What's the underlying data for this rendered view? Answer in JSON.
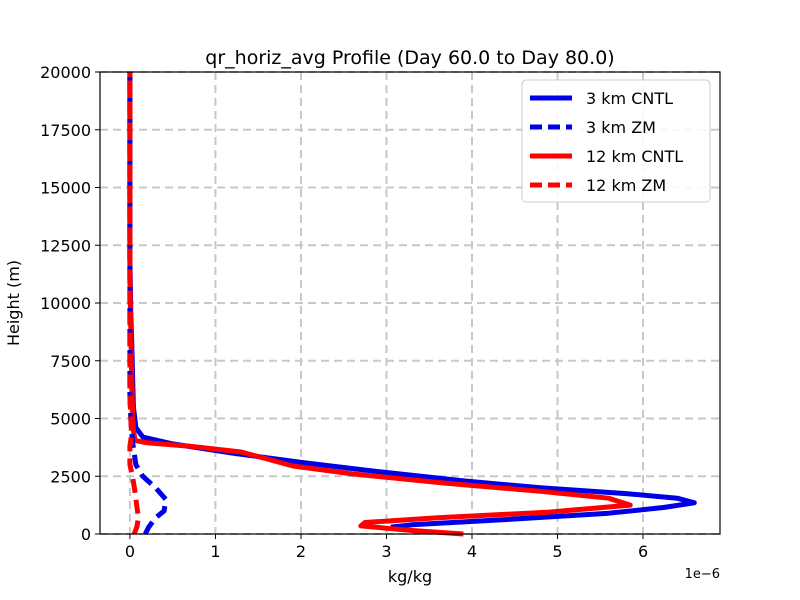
{
  "chart_data": {
    "type": "line",
    "title": "qr_horiz_avg Profile (Day 60.0 to Day 80.0)",
    "xlabel": "kg/kg",
    "ylabel": "Height (m)",
    "x_offset_label": "1e−6",
    "xlim": [
      -0.35,
      6.9
    ],
    "ylim": [
      0,
      20000
    ],
    "xticks": [
      0,
      1,
      2,
      3,
      4,
      5,
      6
    ],
    "yticks": [
      0,
      2500,
      5000,
      7500,
      10000,
      12500,
      15000,
      17500,
      20000
    ],
    "grid": true,
    "legend_position": "top-right",
    "series": [
      {
        "name": "3 km CNTL",
        "color": "#0000e6",
        "style": "solid",
        "points": [
          [
            3.05,
            300
          ],
          [
            3.3,
            400
          ],
          [
            4.5,
            650
          ],
          [
            5.6,
            900
          ],
          [
            6.25,
            1150
          ],
          [
            6.6,
            1350
          ],
          [
            6.4,
            1550
          ],
          [
            5.8,
            1750
          ],
          [
            4.8,
            2000
          ],
          [
            3.9,
            2300
          ],
          [
            2.9,
            2700
          ],
          [
            2.0,
            3100
          ],
          [
            1.2,
            3500
          ],
          [
            0.5,
            3900
          ],
          [
            0.15,
            4200
          ],
          [
            0.07,
            4600
          ],
          [
            0.04,
            5500
          ],
          [
            0.03,
            7000
          ],
          [
            0.02,
            8500
          ],
          [
            0.01,
            9500
          ],
          [
            0.0,
            12000
          ],
          [
            0.0,
            20000
          ]
        ]
      },
      {
        "name": "3 km ZM",
        "color": "#0000e6",
        "style": "dashed",
        "points": [
          [
            0.18,
            0
          ],
          [
            0.22,
            300
          ],
          [
            0.3,
            700
          ],
          [
            0.4,
            1000
          ],
          [
            0.42,
            1500
          ],
          [
            0.3,
            2000
          ],
          [
            0.15,
            2500
          ],
          [
            0.07,
            3000
          ],
          [
            0.05,
            3500
          ],
          [
            0.03,
            4000
          ],
          [
            0.01,
            5000
          ],
          [
            0.0,
            6000
          ],
          [
            0.0,
            20000
          ]
        ]
      },
      {
        "name": "12 km CNTL",
        "color": "#ff0000",
        "style": "solid",
        "points": [
          [
            3.9,
            0
          ],
          [
            3.3,
            150
          ],
          [
            2.7,
            350
          ],
          [
            2.75,
            500
          ],
          [
            3.6,
            700
          ],
          [
            4.9,
            950
          ],
          [
            5.85,
            1250
          ],
          [
            5.6,
            1550
          ],
          [
            4.8,
            1850
          ],
          [
            3.7,
            2200
          ],
          [
            2.6,
            2600
          ],
          [
            1.9,
            2950
          ],
          [
            1.6,
            3250
          ],
          [
            1.3,
            3550
          ],
          [
            0.7,
            3800
          ],
          [
            0.2,
            3950
          ],
          [
            0.06,
            4050
          ],
          [
            0.04,
            4500
          ],
          [
            0.03,
            5500
          ],
          [
            0.02,
            7000
          ],
          [
            0.01,
            9000
          ],
          [
            0.0,
            11000
          ],
          [
            0.0,
            20000
          ]
        ]
      },
      {
        "name": "12 km ZM",
        "color": "#ff0000",
        "style": "dashed",
        "points": [
          [
            0.05,
            0
          ],
          [
            0.08,
            300
          ],
          [
            0.1,
            700
          ],
          [
            0.08,
            1200
          ],
          [
            0.06,
            1800
          ],
          [
            0.03,
            2500
          ],
          [
            0.0,
            3000
          ],
          [
            0.0,
            3800
          ],
          [
            0.02,
            4300
          ],
          [
            0.01,
            5000
          ],
          [
            0.0,
            6000
          ],
          [
            0.0,
            20000
          ]
        ]
      }
    ]
  }
}
